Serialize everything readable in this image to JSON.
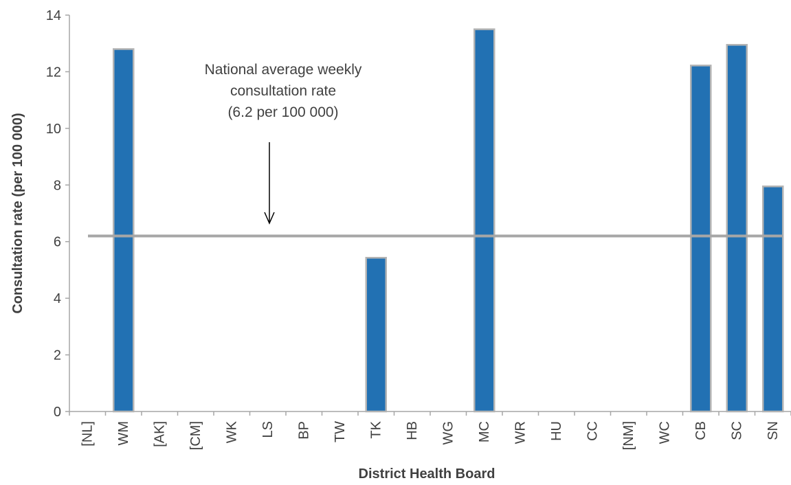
{
  "chart_data": {
    "type": "bar",
    "categories": [
      "[NL]",
      "WM",
      "[AK]",
      "[CM]",
      "WK",
      "LS",
      "BP",
      "TW",
      "TK",
      "HB",
      "WG",
      "MC",
      "WR",
      "HU",
      "CC",
      "[NM]",
      "WC",
      "CB",
      "SC",
      "SN"
    ],
    "values": [
      0,
      12.8,
      0,
      0,
      0,
      0,
      0,
      0,
      5.43,
      0,
      0,
      13.5,
      0,
      0,
      0,
      0,
      0,
      12.22,
      12.95,
      7.95
    ],
    "xlabel": "District Health Board",
    "ylabel": "Consultation rate (per 100 000)",
    "ylim": [
      0,
      14
    ],
    "yticks": [
      0,
      2,
      4,
      6,
      8,
      10,
      12,
      14
    ],
    "reference_line": {
      "value": 6.2,
      "label_lines": [
        "National average weekly",
        "consultation rate",
        "(6.2 per 100 000)"
      ]
    },
    "grid": false,
    "colors": {
      "bar": "#2271b3",
      "bar_edge": "#b3b3b3",
      "reference_line": "#a6a6a6",
      "axis": "#a6a6a6",
      "text": "#404040"
    }
  }
}
